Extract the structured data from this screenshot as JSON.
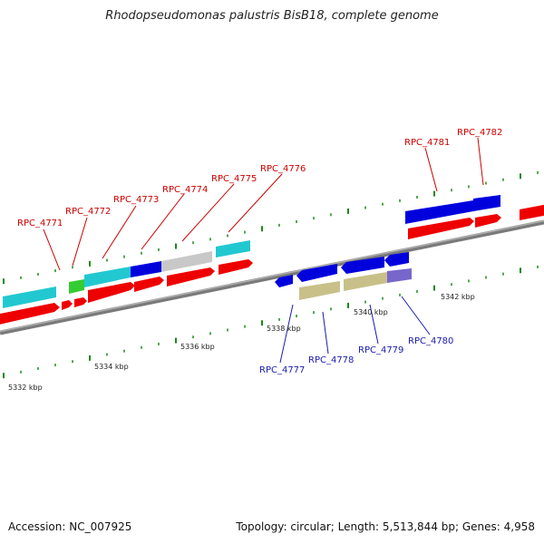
{
  "title": "Rhodopseudomonas palustris BisB18, complete genome",
  "footer": {
    "accession": "Accession: NC_007925",
    "summary": "Topology: circular; Length: 5,513,844 bp; Genes: 4,958"
  },
  "colors": {
    "axis": "#8a8a8a",
    "tick": "#1a8a1a",
    "label_top": "#cc0000",
    "label_bottom": "#1a1ab0",
    "red": "#ee0000",
    "cyan": "#22c8d0",
    "blue": "#0000dd",
    "green": "#33cc33",
    "gray": "#c8c8c8",
    "khaki": "#c8c088",
    "purple": "#7766cc"
  },
  "scale_labels": [
    {
      "text": "5332 kbp",
      "kbp": 5332
    },
    {
      "text": "5334 kbp",
      "kbp": 5334
    },
    {
      "text": "5336 kbp",
      "kbp": 5336
    },
    {
      "text": "5338 kbp",
      "kbp": 5338
    },
    {
      "text": "5340 kbp",
      "kbp": 5340
    },
    {
      "text": "5342 kbp",
      "kbp": 5342
    }
  ],
  "gene_labels_top": [
    "RPC_4771",
    "RPC_4772",
    "RPC_4773",
    "RPC_4774",
    "RPC_4775",
    "RPC_4776",
    "RPC_4781",
    "RPC_4782"
  ],
  "gene_labels_bottom": [
    "RPC_4777",
    "RPC_4778",
    "RPC_4779",
    "RPC_4780"
  ]
}
